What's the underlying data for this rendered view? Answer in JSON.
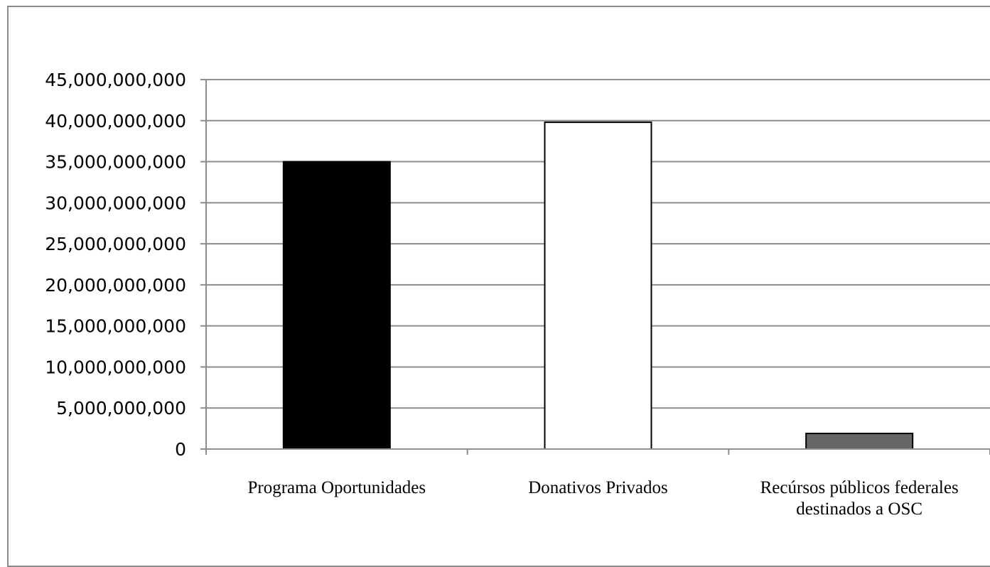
{
  "chart_data": {
    "type": "bar",
    "title": "",
    "xlabel": "",
    "ylabel": "",
    "categories": [
      [
        "Programa Oportunidades"
      ],
      [
        "Donativos Privados"
      ],
      [
        "Recúrsos públicos  federales",
        "destinados a OSC"
      ]
    ],
    "values": [
      35000000000,
      39800000000,
      1900000000
    ],
    "bar_colors": [
      "#000000",
      "#ffffff",
      "#666666"
    ],
    "bar_stroke": "#000000",
    "ylim": [
      0,
      45000000000
    ],
    "yticks": [
      {
        "value": 0,
        "label": "0"
      },
      {
        "value": 5000000000,
        "label": "5,000,000,000"
      },
      {
        "value": 10000000000,
        "label": "10,000,000,000"
      },
      {
        "value": 15000000000,
        "label": "15,000,000,000"
      },
      {
        "value": 20000000000,
        "label": "20,000,000,000"
      },
      {
        "value": 25000000000,
        "label": "25,000,000,000"
      },
      {
        "value": 30000000000,
        "label": "30,000,000,000"
      },
      {
        "value": 35000000000,
        "label": "35,000,000,000"
      },
      {
        "value": 40000000000,
        "label": "40,000,000,000"
      },
      {
        "value": 45000000000,
        "label": "45,000,000,000"
      }
    ],
    "grid": true,
    "grid_color": "#8c8c8c",
    "legend": "none"
  }
}
